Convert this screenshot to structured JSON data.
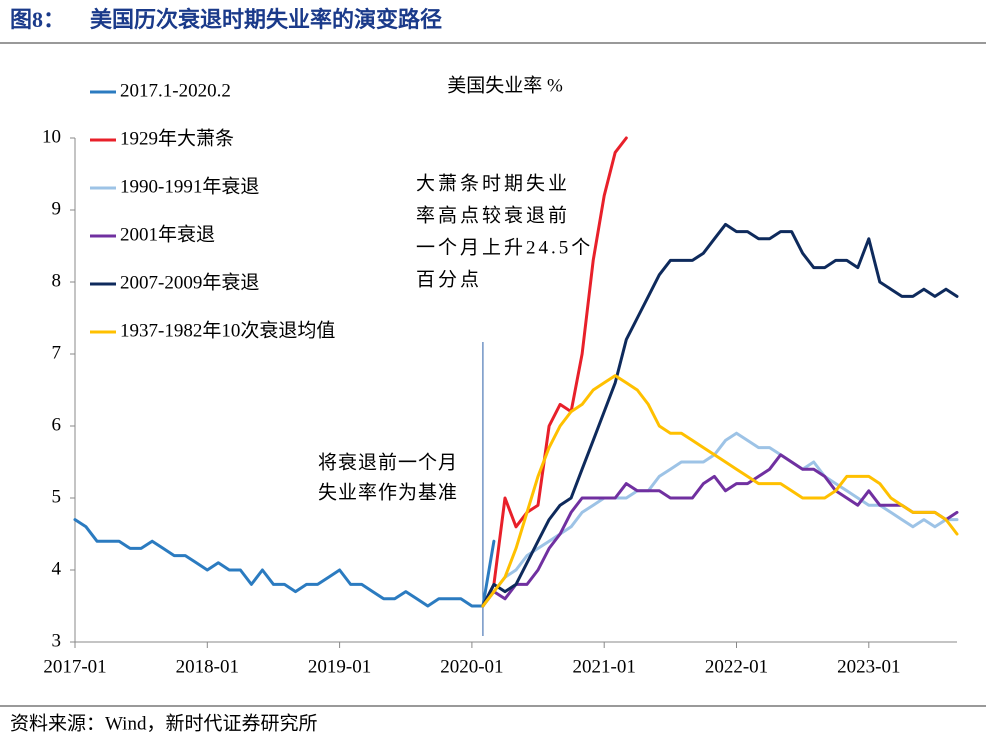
{
  "chart_data": {
    "type": "line",
    "figure_label": "图8：",
    "title": "美国历次衰退时期失业率的演变路径",
    "subtitle": "美国失业率 %",
    "annotations": [
      [
        "大萧条时期失业",
        "率高点较衰退前",
        "一个月上升24.5个",
        "百分点"
      ],
      [
        "将衰退前一个月",
        "失业率作为基准"
      ]
    ],
    "source": "资料来源：Wind，新时代证券研究所",
    "x": [
      "2017-01",
      "2017-02",
      "2017-03",
      "2017-04",
      "2017-05",
      "2017-06",
      "2017-07",
      "2017-08",
      "2017-09",
      "2017-10",
      "2017-11",
      "2017-12",
      "2018-01",
      "2018-02",
      "2018-03",
      "2018-04",
      "2018-05",
      "2018-06",
      "2018-07",
      "2018-08",
      "2018-09",
      "2018-10",
      "2018-11",
      "2018-12",
      "2019-01",
      "2019-02",
      "2019-03",
      "2019-04",
      "2019-05",
      "2019-06",
      "2019-07",
      "2019-08",
      "2019-09",
      "2019-10",
      "2019-11",
      "2019-12",
      "2020-01",
      "2020-02",
      "2020-03",
      "2020-04",
      "2020-05",
      "2020-06",
      "2020-07",
      "2020-08",
      "2020-09",
      "2020-10",
      "2020-11",
      "2020-12",
      "2021-01",
      "2021-02",
      "2021-03",
      "2021-04",
      "2021-05",
      "2021-06",
      "2021-07",
      "2021-08",
      "2021-09",
      "2021-10",
      "2021-11",
      "2021-12",
      "2022-01",
      "2022-02",
      "2022-03",
      "2022-04",
      "2022-05",
      "2022-06",
      "2022-07",
      "2022-08",
      "2022-09",
      "2022-10",
      "2022-11",
      "2022-12",
      "2023-01",
      "2023-02",
      "2023-03",
      "2023-04",
      "2023-05",
      "2023-06",
      "2023-07",
      "2023-08",
      "2023-09"
    ],
    "xlim": [
      "2017-01",
      "2023-09"
    ],
    "xticks": [
      "2017-01",
      "2018-01",
      "2019-01",
      "2020-01",
      "2021-01",
      "2022-01",
      "2023-01"
    ],
    "ylim": [
      3,
      10
    ],
    "yticks": [
      3,
      4,
      5,
      6,
      7,
      8,
      9,
      10
    ],
    "series": [
      {
        "name": "2017.1-2020.2",
        "color": "#2b7bc0",
        "values": [
          4.7,
          4.6,
          4.4,
          4.4,
          4.4,
          4.3,
          4.3,
          4.4,
          4.3,
          4.2,
          4.2,
          4.1,
          4.0,
          4.1,
          4.0,
          4.0,
          3.8,
          4.0,
          3.8,
          3.8,
          3.7,
          3.8,
          3.8,
          3.9,
          4.0,
          3.8,
          3.8,
          3.7,
          3.6,
          3.6,
          3.7,
          3.6,
          3.5,
          3.6,
          3.6,
          3.6,
          3.5,
          3.5,
          4.4,
          null,
          null,
          null,
          null,
          null,
          null,
          null,
          null,
          null,
          null,
          null,
          null,
          null,
          null,
          null,
          null,
          null,
          null,
          null,
          null,
          null,
          null,
          null,
          null,
          null,
          null,
          null,
          null,
          null,
          null,
          null,
          null,
          null,
          null,
          null,
          null,
          null,
          null,
          null,
          null,
          null,
          null
        ]
      },
      {
        "name": "1929年大萧条",
        "color": "#e8202a",
        "values": [
          null,
          null,
          null,
          null,
          null,
          null,
          null,
          null,
          null,
          null,
          null,
          null,
          null,
          null,
          null,
          null,
          null,
          null,
          null,
          null,
          null,
          null,
          null,
          null,
          null,
          null,
          null,
          null,
          null,
          null,
          null,
          null,
          null,
          null,
          null,
          null,
          null,
          3.5,
          3.8,
          5.0,
          4.6,
          4.8,
          4.9,
          6.0,
          6.3,
          6.2,
          7.0,
          8.3,
          9.2,
          9.8,
          10.0,
          null,
          null,
          null,
          null,
          null,
          null,
          null,
          null,
          null,
          null,
          null,
          null,
          null,
          null,
          null,
          null,
          null,
          null,
          null,
          null,
          null,
          null,
          null,
          null,
          null,
          null,
          null,
          null,
          null,
          null
        ]
      },
      {
        "name": "1990-1991年衰退",
        "color": "#9dc3e6",
        "values": [
          null,
          null,
          null,
          null,
          null,
          null,
          null,
          null,
          null,
          null,
          null,
          null,
          null,
          null,
          null,
          null,
          null,
          null,
          null,
          null,
          null,
          null,
          null,
          null,
          null,
          null,
          null,
          null,
          null,
          null,
          null,
          null,
          null,
          null,
          null,
          null,
          null,
          3.5,
          3.7,
          3.9,
          4.0,
          4.2,
          4.3,
          4.4,
          4.5,
          4.6,
          4.8,
          4.9,
          5.0,
          5.0,
          5.0,
          5.1,
          5.1,
          5.3,
          5.4,
          5.5,
          5.5,
          5.5,
          5.6,
          5.8,
          5.9,
          5.8,
          5.7,
          5.7,
          5.6,
          5.5,
          5.4,
          5.5,
          5.3,
          5.2,
          5.1,
          5.0,
          4.9,
          4.9,
          4.8,
          4.7,
          4.6,
          4.7,
          4.6,
          4.7,
          4.7
        ]
      },
      {
        "name": "2001年衰退",
        "color": "#7030a0",
        "values": [
          null,
          null,
          null,
          null,
          null,
          null,
          null,
          null,
          null,
          null,
          null,
          null,
          null,
          null,
          null,
          null,
          null,
          null,
          null,
          null,
          null,
          null,
          null,
          null,
          null,
          null,
          null,
          null,
          null,
          null,
          null,
          null,
          null,
          null,
          null,
          null,
          null,
          3.5,
          3.7,
          3.6,
          3.8,
          3.8,
          4.0,
          4.3,
          4.5,
          4.8,
          5.0,
          5.0,
          5.0,
          5.0,
          5.2,
          5.1,
          5.1,
          5.1,
          5.0,
          5.0,
          5.0,
          5.2,
          5.3,
          5.1,
          5.2,
          5.2,
          5.3,
          5.4,
          5.6,
          5.5,
          5.4,
          5.4,
          5.3,
          5.1,
          5.0,
          4.9,
          5.1,
          4.9,
          4.9,
          4.9,
          4.8,
          4.8,
          4.8,
          4.7,
          4.8
        ]
      },
      {
        "name": "2007-2009年衰退",
        "color": "#0e2a5c",
        "values": [
          null,
          null,
          null,
          null,
          null,
          null,
          null,
          null,
          null,
          null,
          null,
          null,
          null,
          null,
          null,
          null,
          null,
          null,
          null,
          null,
          null,
          null,
          null,
          null,
          null,
          null,
          null,
          null,
          null,
          null,
          null,
          null,
          null,
          null,
          null,
          null,
          null,
          3.5,
          3.8,
          3.7,
          3.8,
          4.1,
          4.4,
          4.7,
          4.9,
          5.0,
          5.4,
          5.8,
          6.2,
          6.6,
          7.2,
          7.5,
          7.8,
          8.1,
          8.3,
          8.3,
          8.3,
          8.4,
          8.6,
          8.8,
          8.7,
          8.7,
          8.6,
          8.6,
          8.7,
          8.7,
          8.4,
          8.2,
          8.2,
          8.3,
          8.3,
          8.2,
          8.6,
          8.0,
          7.9,
          7.8,
          7.8,
          7.9,
          7.8,
          7.9,
          7.8
        ]
      },
      {
        "name": "1937-1982年10次衰退均值",
        "color": "#ffc000",
        "values": [
          null,
          null,
          null,
          null,
          null,
          null,
          null,
          null,
          null,
          null,
          null,
          null,
          null,
          null,
          null,
          null,
          null,
          null,
          null,
          null,
          null,
          null,
          null,
          null,
          null,
          null,
          null,
          null,
          null,
          null,
          null,
          null,
          null,
          null,
          null,
          null,
          null,
          3.5,
          3.7,
          3.9,
          4.3,
          4.8,
          5.3,
          5.7,
          6.0,
          6.2,
          6.3,
          6.5,
          6.6,
          6.7,
          6.6,
          6.5,
          6.3,
          6.0,
          5.9,
          5.9,
          5.8,
          5.7,
          5.6,
          5.5,
          5.4,
          5.3,
          5.2,
          5.2,
          5.2,
          5.1,
          5.0,
          5.0,
          5.0,
          5.1,
          5.3,
          5.3,
          5.3,
          5.2,
          5.0,
          4.9,
          4.8,
          4.8,
          4.8,
          4.7,
          4.5
        ]
      }
    ]
  }
}
